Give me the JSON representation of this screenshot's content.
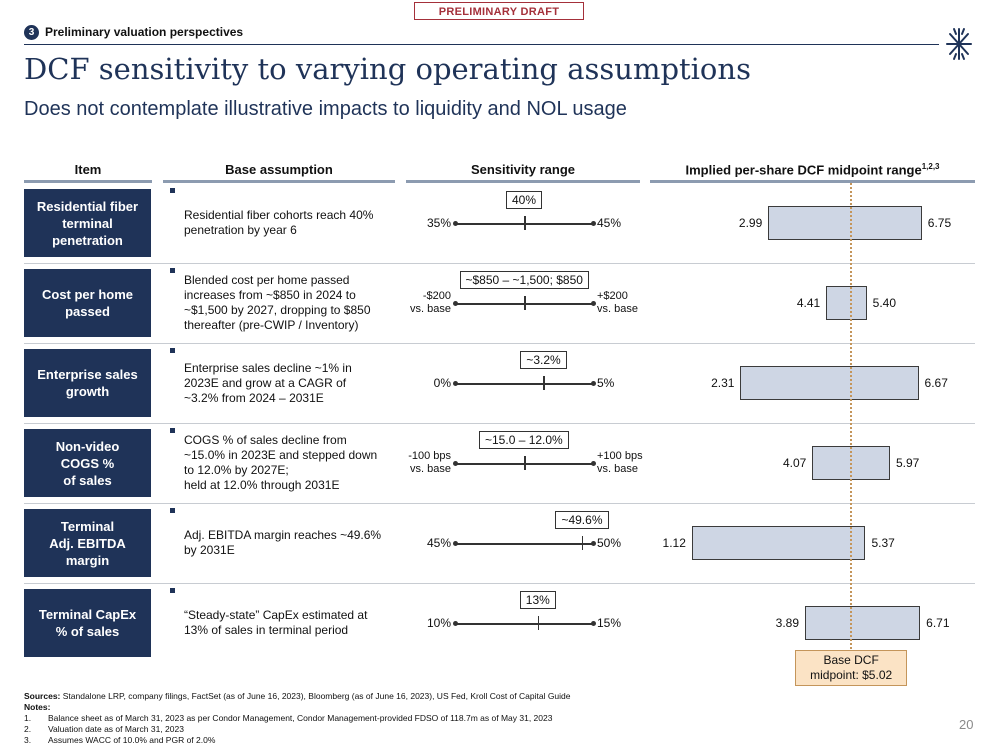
{
  "banner": "PRELIMINARY DRAFT",
  "section": {
    "number": "3",
    "title": "Preliminary valuation perspectives"
  },
  "title": "DCF sensitivity to varying operating assumptions",
  "subtitle": "Does not contemplate illustrative impacts to liquidity and NOL usage",
  "columns": {
    "item": "Item",
    "base": "Base assumption",
    "range": "Sensitivity range",
    "implied": "Implied per-share DCF midpoint range",
    "implied_sup": "1,2,3"
  },
  "rows": [
    {
      "item": "Residential fiber\nterminal\npenetration",
      "base": "Residential fiber cohorts reach 40%\npenetration by year 6",
      "low_label": "35%",
      "high_label": "45%",
      "callout": "40%",
      "base_fraction": 0.5,
      "low": 2.99,
      "high": 6.75,
      "low_text": "2.99",
      "high_text": "6.75"
    },
    {
      "item": "Cost per home\npassed",
      "base": "Blended cost per home passed\nincreases from ~$850 in 2024 to\n~$1,500 by 2027, dropping to $850\nthereafter (pre-CWIP / Inventory)",
      "low_label": "-$200\nvs. base",
      "high_label": "+$200\nvs. base",
      "callout": "~$850 – ~1,500; $850",
      "base_fraction": 0.5,
      "low": 4.41,
      "high": 5.4,
      "low_text": "4.41",
      "high_text": "5.40"
    },
    {
      "item": "Enterprise sales\ngrowth",
      "base": "Enterprise sales decline ~1% in\n2023E and grow at a CAGR of\n~3.2% from 2024 – 2031E",
      "low_label": "0%",
      "high_label": "5%",
      "callout": "~3.2%",
      "base_fraction": 0.64,
      "low": 2.31,
      "high": 6.67,
      "low_text": "2.31",
      "high_text": "6.67"
    },
    {
      "item": "Non-video\nCOGS %\nof sales",
      "base": "COGS % of sales decline from\n~15.0% in 2023E and stepped down\nto 12.0% by 2027E;\nheld at 12.0% through 2031E",
      "low_label": "-100 bps\nvs. base",
      "high_label": "+100 bps\nvs. base",
      "callout": "~15.0 – 12.0%",
      "base_fraction": 0.5,
      "low": 4.07,
      "high": 5.97,
      "low_text": "4.07",
      "high_text": "5.97"
    },
    {
      "item": "Terminal\nAdj. EBITDA\nmargin",
      "base": "Adj. EBITDA margin reaches ~49.6%\nby 2031E",
      "low_label": "45%",
      "high_label": "50%",
      "callout": "~49.6%",
      "base_fraction": 0.92,
      "low": 1.12,
      "high": 5.37,
      "low_text": "1.12",
      "high_text": "5.37"
    },
    {
      "item": "Terminal CapEx\n% of sales",
      "base": "“Steady-state” CapEx estimated at\n13% of sales in terminal period",
      "low_label": "10%",
      "high_label": "15%",
      "callout": "13%",
      "base_fraction": 0.6,
      "low": 3.89,
      "high": 6.71,
      "low_text": "3.89",
      "high_text": "6.71"
    }
  ],
  "base_dcf": {
    "label": "Base DCF\nmidpoint: $5.02",
    "value": 5.02
  },
  "sources": {
    "label": "Sources:",
    "text": " Standalone LRP, company filings, FactSet (as of June 16, 2023), Bloomberg (as of June 16, 2023), US Fed, Kroll Cost of Capital Guide"
  },
  "notes_label": "Notes:",
  "notes": [
    {
      "num": "1.",
      "text": "Balance sheet as of March 31, 2023 as per Condor Management, Condor Management-provided FDSO of 118.7m as of May 31, 2023"
    },
    {
      "num": "2.",
      "text": "Valuation date as of March 31, 2023"
    },
    {
      "num": "3.",
      "text": "Assumes WACC of 10.0% and PGR of 2.0%"
    }
  ],
  "page_number": "20",
  "colors": {
    "navy": "#1f3358",
    "bar_fill": "#ced6e4",
    "base_line": "#c4955a",
    "base_box": "#fbe3c5",
    "draft": "#a4303a"
  },
  "icons": {
    "logo": "asterisk-logo-icon",
    "section": "section-number-badge"
  }
}
